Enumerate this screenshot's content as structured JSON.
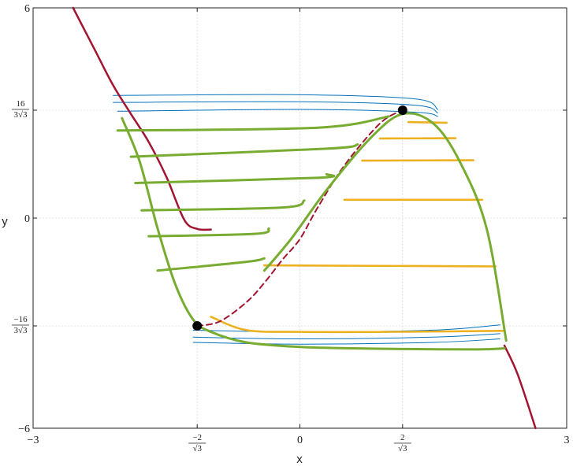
{
  "chart_data": {
    "type": "line",
    "title": "",
    "xlabel": "x",
    "ylabel": "y",
    "xlim": [
      -3,
      3
    ],
    "ylim": [
      -6,
      6
    ],
    "grid": true,
    "x_ticks": [
      {
        "value": -3,
        "label": "−3"
      },
      {
        "value": -1.1547,
        "label_num": "−2",
        "label_den": "√3"
      },
      {
        "value": 0,
        "label": "0"
      },
      {
        "value": 1.1547,
        "label_num": "2",
        "label_den": "√3"
      },
      {
        "value": 3,
        "label": "3"
      }
    ],
    "y_ticks": [
      {
        "value": -6,
        "label": "−6"
      },
      {
        "value": -3.0792,
        "label_num": "−16",
        "label_den": "3√3"
      },
      {
        "value": 0,
        "label": "0"
      },
      {
        "value": 3.0792,
        "label_num": "16",
        "label_den": "3√3"
      },
      {
        "value": 6,
        "label": "6"
      }
    ],
    "colors": {
      "nullcline": "#a2142f",
      "attracting": "#77ac30",
      "unstable": "#edb120",
      "trajectory": "#0072bd",
      "equilibrium": "#000000"
    },
    "series": [
      {
        "style": "nullcline",
        "x": [
          -2.55,
          -2.3,
          -2.1,
          -1.9,
          -1.7,
          -1.5,
          -1.3,
          -1.1547,
          -1.0
        ],
        "y": [
          6.0,
          4.77,
          3.79,
          2.97,
          2.17,
          1.17,
          -0.05,
          -0.31,
          -0.33
        ]
      },
      {
        "style": "nullcline",
        "x": [
          2.3,
          2.45,
          2.65
        ],
        "y": [
          -3.64,
          -4.47,
          -6.0
        ]
      },
      {
        "style": "nullcline_dashed",
        "x": [
          -1.1547,
          -0.9,
          -0.6,
          -0.4,
          -0.2,
          0.0,
          0.2,
          0.5,
          0.9,
          1.1547
        ],
        "y": [
          -3.0792,
          -2.95,
          -2.4,
          -1.85,
          -1.2,
          -0.6,
          0.3,
          1.5,
          2.7,
          3.0792
        ]
      },
      {
        "style": "attracting",
        "x": [
          -2.0,
          -1.8,
          -1.6,
          -1.4,
          -1.2,
          -1.0,
          -0.6,
          0.0,
          0.6,
          1.2,
          2.0,
          2.3
        ],
        "y": [
          2.85,
          1.6,
          -0.3,
          -1.9,
          -2.9,
          -3.25,
          -3.55,
          -3.68,
          -3.72,
          -3.74,
          -3.75,
          -3.72
        ]
      },
      {
        "style": "attracting",
        "x": [
          -0.4,
          -0.1,
          0.3,
          0.8,
          1.1547,
          1.5,
          1.8,
          2.1,
          2.32
        ],
        "y": [
          -1.5,
          -0.6,
          0.8,
          2.3,
          2.97,
          2.7,
          1.6,
          -0.3,
          -3.5
        ]
      },
      {
        "style": "attracting",
        "x": [
          -2.05,
          0.2,
          1.0
        ],
        "y": [
          2.5,
          2.58,
          2.9
        ]
      },
      {
        "style": "attracting",
        "x": [
          -1.9,
          0.3,
          0.65
        ],
        "y": [
          1.75,
          1.98,
          2.1
        ]
      },
      {
        "style": "attracting",
        "x": [
          -1.85,
          0.2,
          0.3
        ],
        "y": [
          1.0,
          1.15,
          1.25
        ]
      },
      {
        "style": "attracting",
        "x": [
          -1.78,
          -0.2,
          0.05
        ],
        "y": [
          0.22,
          0.3,
          0.5
        ]
      },
      {
        "style": "attracting",
        "x": [
          -1.7,
          -0.5,
          -0.35
        ],
        "y": [
          -0.52,
          -0.45,
          -0.3
        ]
      },
      {
        "style": "attracting",
        "x": [
          -1.6,
          -0.6,
          -0.4
        ],
        "y": [
          -1.5,
          -1.25,
          -1.15
        ]
      },
      {
        "style": "unstable",
        "x": [
          1.22,
          1.65
        ],
        "y": [
          2.74,
          2.72
        ]
      },
      {
        "style": "unstable",
        "x": [
          0.9,
          1.75
        ],
        "y": [
          2.27,
          2.28
        ]
      },
      {
        "style": "unstable",
        "x": [
          0.7,
          1.95
        ],
        "y": [
          1.64,
          1.65
        ]
      },
      {
        "style": "unstable",
        "x": [
          0.5,
          2.05
        ],
        "y": [
          0.52,
          0.52
        ]
      },
      {
        "style": "unstable",
        "x": [
          -0.4,
          2.2
        ],
        "y": [
          -1.35,
          -1.38
        ]
      },
      {
        "style": "unstable",
        "x": [
          -1.0,
          -0.6,
          0.0,
          1.0,
          2.3
        ],
        "y": [
          -2.82,
          -3.2,
          -3.25,
          -3.25,
          -3.22
        ]
      },
      {
        "style": "trajectory",
        "x": [
          -2.1,
          0.0,
          1.3,
          1.55
        ],
        "y": [
          3.5,
          3.52,
          3.4,
          3.1
        ]
      },
      {
        "style": "trajectory",
        "x": [
          -2.1,
          0.0,
          1.3,
          1.55
        ],
        "y": [
          3.3,
          3.32,
          3.22,
          3.0
        ]
      },
      {
        "style": "trajectory",
        "x": [
          -2.05,
          0.0,
          1.3,
          1.55
        ],
        "y": [
          3.05,
          3.1,
          3.02,
          2.9
        ]
      },
      {
        "style": "trajectory",
        "x": [
          -1.2,
          0.0,
          1.5,
          2.25
        ],
        "y": [
          -3.2,
          -3.25,
          -3.2,
          -3.05
        ]
      },
      {
        "style": "trajectory",
        "x": [
          -1.2,
          0.0,
          1.5,
          2.25
        ],
        "y": [
          -3.4,
          -3.45,
          -3.4,
          -3.3
        ]
      },
      {
        "style": "trajectory",
        "x": [
          -1.2,
          0.0,
          1.5,
          2.25
        ],
        "y": [
          -3.55,
          -3.6,
          -3.55,
          -3.45
        ]
      }
    ],
    "points": [
      {
        "x": -1.1547,
        "y": -3.0792,
        "label": ""
      },
      {
        "x": 1.1547,
        "y": 3.0792,
        "label": ""
      }
    ]
  }
}
